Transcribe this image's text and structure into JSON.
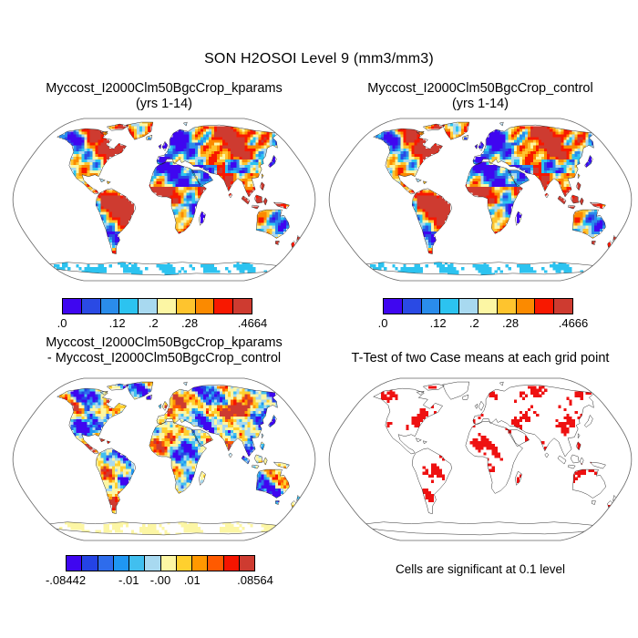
{
  "figure": {
    "title": "SON H2OSOI Level 9 (mm3/mm3)",
    "note": "Cells are significant at 0.1 level",
    "background": "#ffffff",
    "text_color": "#000000",
    "ocean_color": "#ffffff",
    "outline_color": "#1a1a1a"
  },
  "panels": {
    "kparams": {
      "title": "Myccost_I2000Clm50BgcCrop_kparams",
      "subtitle": "(yrs 1-14)",
      "colorbar": {
        "colors": [
          "#3f06f0",
          "#2a4ae4",
          "#2a8ceb",
          "#2cc3f0",
          "#a8d9f0",
          "#fcf6a4",
          "#fec42e",
          "#fb8a00",
          "#f81800",
          "#ce3b30"
        ],
        "ticks": [
          {
            "label": ".0",
            "pos": 0
          },
          {
            "label": ".12",
            "pos": 0.29
          },
          {
            "label": ".2",
            "pos": 0.48
          },
          {
            "label": ".28",
            "pos": 0.67
          },
          {
            "label": ".4664",
            "pos": 1
          }
        ]
      }
    },
    "control": {
      "title": "Myccost_I2000Clm50BgcCrop_control",
      "subtitle": "(yrs 1-14)",
      "colorbar": {
        "colors": [
          "#3f06f0",
          "#2a4ae4",
          "#2a8ceb",
          "#2cc3f0",
          "#a8d9f0",
          "#fcf6a4",
          "#fec42e",
          "#fb8a00",
          "#f81800",
          "#ce3b30"
        ],
        "ticks": [
          {
            "label": ".0",
            "pos": 0
          },
          {
            "label": ".12",
            "pos": 0.29
          },
          {
            "label": ".2",
            "pos": 0.48
          },
          {
            "label": ".28",
            "pos": 0.67
          },
          {
            "label": ".4666",
            "pos": 1
          }
        ]
      }
    },
    "diff": {
      "title": "Myccost_I2000Clm50BgcCrop_kparams",
      "subtitle": "- Myccost_I2000Clm50BgcCrop_control",
      "colorbar": {
        "colors": [
          "#3f06f0",
          "#2443e4",
          "#2e6cec",
          "#1f97f2",
          "#41bfef",
          "#a8d9f0",
          "#fcf6a4",
          "#ffd02e",
          "#ff9800",
          "#ff5a00",
          "#f51500",
          "#ce3b30"
        ],
        "ticks": [
          {
            "label": "-.08442",
            "pos": 0
          },
          {
            "label": "-.01",
            "pos": 0.333
          },
          {
            "label": "-.00",
            "pos": 0.5
          },
          {
            "label": ".01",
            "pos": 0.667
          },
          {
            "label": ".08564",
            "pos": 1
          }
        ]
      }
    },
    "ttest": {
      "title": "T-Test of two Case means at each grid point",
      "significant_color": "#ee1111"
    }
  },
  "chart_data": [
    {
      "type": "heatmap",
      "title": "Myccost_I2000Clm50BgcCrop_kparams (yrs 1-14)",
      "projection": "robinson",
      "variable": "SON H2OSOI Level 9 (mm3/mm3)",
      "scale_min": 0,
      "scale_max": 0.4664,
      "labeled_levels": [
        0,
        0.12,
        0.2,
        0.28,
        0.4664
      ],
      "n_colors": 10,
      "legend_position": "below"
    },
    {
      "type": "heatmap",
      "title": "Myccost_I2000Clm50BgcCrop_control (yrs 1-14)",
      "projection": "robinson",
      "variable": "SON H2OSOI Level 9 (mm3/mm3)",
      "scale_min": 0,
      "scale_max": 0.4666,
      "labeled_levels": [
        0,
        0.12,
        0.2,
        0.28,
        0.4666
      ],
      "n_colors": 10,
      "legend_position": "below"
    },
    {
      "type": "heatmap",
      "title": "Myccost_I2000Clm50BgcCrop_kparams - Myccost_I2000Clm50BgcCrop_control",
      "projection": "robinson",
      "variable": "difference",
      "scale_min": -0.08442,
      "scale_max": 0.08564,
      "labeled_levels": [
        -0.08442,
        -0.01,
        -0.0,
        0.01,
        0.08564
      ],
      "n_colors": 12,
      "legend_position": "below"
    },
    {
      "type": "heatmap",
      "title": "T-Test of two Case means at each grid point",
      "projection": "robinson",
      "variable": "significance",
      "note": "Cells are significant at 0.1 level",
      "significance_level": 0.1,
      "significant_color": "#ee1111"
    }
  ]
}
